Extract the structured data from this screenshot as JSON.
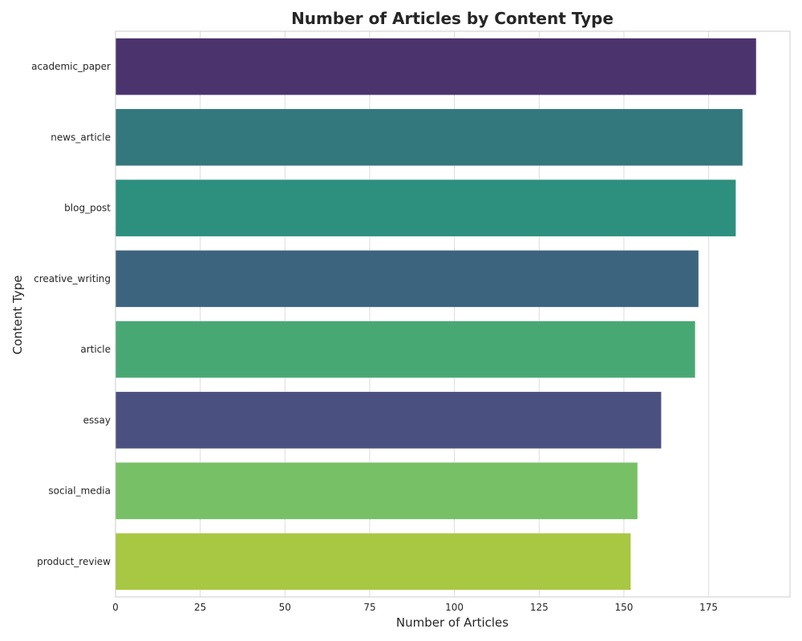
{
  "chart_data": {
    "type": "bar",
    "orientation": "horizontal",
    "title": "Number of Articles by Content Type",
    "xlabel": "Number of Articles",
    "ylabel": "Content Type",
    "categories": [
      "academic_paper",
      "news_article",
      "blog_post",
      "creative_writing",
      "article",
      "essay",
      "social_media",
      "product_review"
    ],
    "values": [
      189,
      185,
      183,
      172,
      171,
      161,
      154,
      152
    ],
    "colors": [
      "#4b336e",
      "#33787d",
      "#2d8f7e",
      "#3d647f",
      "#48a874",
      "#4a5180",
      "#78c066",
      "#a8c742"
    ],
    "xlim": [
      0,
      199
    ],
    "xticks": [
      0,
      25,
      50,
      75,
      100,
      125,
      150,
      175
    ],
    "grid": true,
    "grid_color": "#dddddd",
    "axes_edge_color": "#cccccc"
  }
}
